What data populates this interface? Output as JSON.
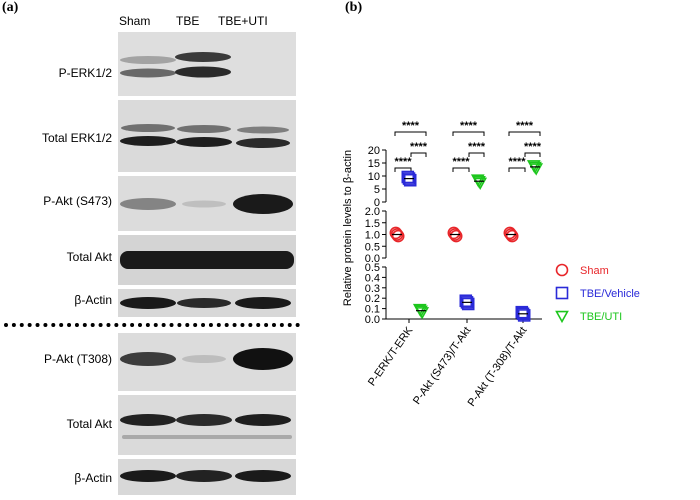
{
  "figure": {
    "panel_a": "(a)",
    "panel_b": "(b)"
  },
  "blot": {
    "lanes": [
      "Sham",
      "TBE",
      "TBE+UTI"
    ],
    "bands": [
      {
        "label": "P-ERK1/2"
      },
      {
        "label": "Total ERK1/2"
      },
      {
        "label": "P-Akt (S473)"
      },
      {
        "label": "Total Akt"
      },
      {
        "label": "β-Actin"
      },
      {
        "label": "P-Akt (T308)"
      },
      {
        "label": "Total Akt"
      },
      {
        "label": "β-Actin"
      }
    ]
  },
  "chart_data": {
    "type": "scatter",
    "ylabel": "Relative protein levels to β-actin",
    "categories": [
      "P-ERK/T-ERK",
      "P-Akt (S473)/T-Akt",
      "P-Akt (T-308)/T-Akt"
    ],
    "y_segments": [
      {
        "range": [
          0,
          0.5
        ],
        "ticks": [
          "0.0",
          "0.1",
          "0.2",
          "0.3",
          "0.4",
          "0.5"
        ]
      },
      {
        "range": [
          0,
          2.0
        ],
        "ticks": [
          "0.0",
          "0.5",
          "1.0",
          "1.5",
          "2.0"
        ]
      },
      {
        "range": [
          0,
          20
        ],
        "ticks": [
          "0",
          "5",
          "10",
          "15",
          "20"
        ]
      }
    ],
    "series": [
      {
        "name": "Sham",
        "marker": "circle",
        "color": "#e8262a",
        "values": [
          1.0,
          1.0,
          1.0
        ]
      },
      {
        "name": "TBE/Vehicle",
        "marker": "square",
        "color": "#2a2ad8",
        "values": [
          9.0,
          0.16,
          0.05
        ]
      },
      {
        "name": "TBE/UTI",
        "marker": "triangle-down",
        "color": "#1dc61d",
        "values": [
          0.08,
          8.0,
          13.5
        ]
      }
    ],
    "significance": "****",
    "legend": "right"
  }
}
